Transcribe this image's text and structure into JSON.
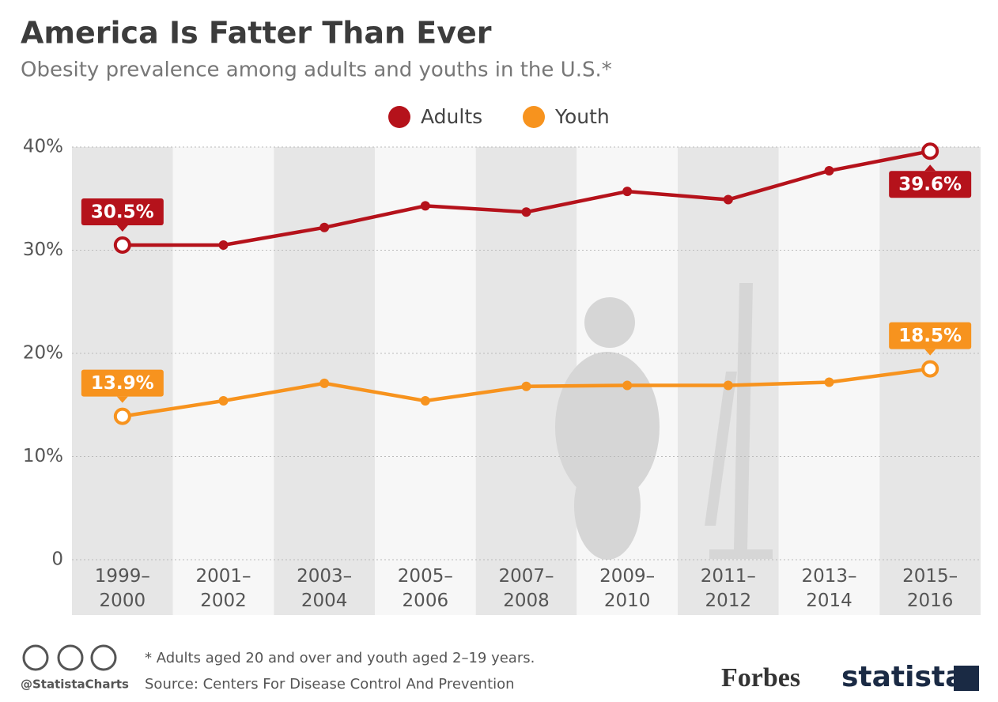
{
  "chart_data": {
    "type": "line",
    "title": "America Is Fatter Than Ever",
    "subtitle": "Obesity prevalence among adults and youths in the U.S.*",
    "categories": [
      "1999–2000",
      "2001–2002",
      "2003–2004",
      "2005–2006",
      "2007–2008",
      "2009–2010",
      "2011–2012",
      "2013–2014",
      "2015–2016"
    ],
    "series": [
      {
        "name": "Adults",
        "color": "#b5121b",
        "values": [
          30.5,
          30.5,
          32.2,
          34.3,
          33.7,
          35.7,
          34.9,
          37.7,
          39.6
        ],
        "value_labels": [
          "30.5%",
          null,
          null,
          null,
          null,
          null,
          null,
          null,
          "39.6%"
        ]
      },
      {
        "name": "Youth",
        "color": "#f7931e",
        "values": [
          13.9,
          15.4,
          17.1,
          15.4,
          16.8,
          16.9,
          16.9,
          17.2,
          18.5
        ],
        "value_labels": [
          "13.9%",
          null,
          null,
          null,
          null,
          null,
          null,
          null,
          "18.5%"
        ]
      }
    ],
    "ylim": [
      0,
      40
    ],
    "yticks": [
      0,
      {
        "value": 10,
        "label": "10%"
      },
      {
        "value": 20,
        "label": "20%"
      },
      {
        "value": 30,
        "label": "30%"
      },
      {
        "value": 40,
        "label": "40%"
      }
    ],
    "grid": true,
    "legend": "top",
    "footnote": "* Adults aged 20 and over and youth aged 2–19 years.",
    "source": "Source: Centers For Disease Control And Prevention",
    "handle": "@StatistaCharts",
    "brands": [
      "Forbes",
      "statista"
    ]
  }
}
